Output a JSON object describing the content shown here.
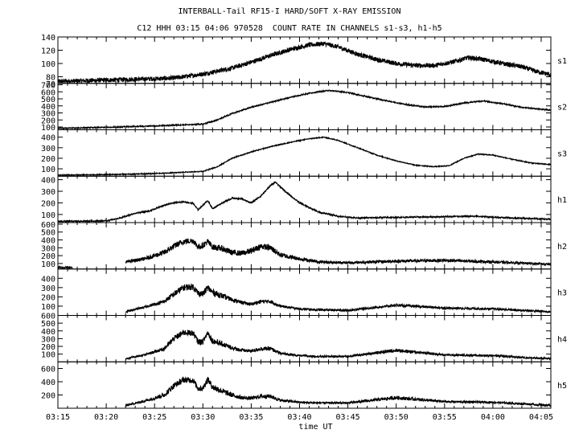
{
  "title": "INTERBALL-Tail RF15-I HARD/SOFT X-RAY EMISSION",
  "subtitle": "C12 HHH 03:15 04:06 970528  COUNT RATE IN CHANNELS s1-s3, h1-h5",
  "chart_data": {
    "type": "line",
    "title": "INTERBALL-Tail RF15-I HARD/SOFT X-RAY EMISSION",
    "subtitle": "C12 HHH 03:15 04:06 970528  COUNT RATE IN CHANNELS s1-s3, h1-h5",
    "xlabel": "time UT",
    "xlim": [
      "03:15",
      "04:06"
    ],
    "x_ticks": [
      "03:15",
      "03:20",
      "03:25",
      "03:30",
      "03:35",
      "03:40",
      "03:45",
      "03:50",
      "03:55",
      "04:00",
      "04:05"
    ],
    "grid": false,
    "panels": [
      {
        "name": "s1",
        "ylim": [
          70,
          140
        ],
        "y_ticks": [
          70,
          80,
          100,
          120,
          140
        ],
        "y_tick_labels": [
          "70",
          "80",
          "100",
          "120",
          "140"
        ],
        "x": [
          15.0,
          20.0,
          25.0,
          27.0,
          30.0,
          33.0,
          35.0,
          37.0,
          39.0,
          41.0,
          42.5,
          44.0,
          46.0,
          48.0,
          50.0,
          52.0,
          54.0,
          56.0,
          57.5,
          59.0,
          61.0,
          63.0,
          64.5,
          66.0
        ],
        "y": [
          73,
          75,
          77,
          78,
          84,
          93,
          102,
          112,
          121,
          128,
          130,
          125,
          114,
          106,
          100,
          97,
          97,
          103,
          109,
          106,
          100,
          95,
          88,
          83
        ],
        "noise": 3.5
      },
      {
        "name": "s2",
        "ylim": [
          60,
          720
        ],
        "y_ticks": [
          100,
          200,
          300,
          400,
          500,
          600,
          700
        ],
        "y_tick_labels": [
          "100",
          "200",
          "300",
          "400",
          "500",
          "600",
          "700"
        ],
        "x": [
          15.0,
          20.0,
          25.0,
          30.0,
          31.5,
          33.0,
          35.0,
          37.0,
          39.0,
          41.0,
          43.0,
          45.0,
          48.0,
          51.0,
          53.0,
          55.0,
          57.0,
          59.0,
          61.0,
          63.0,
          66.0
        ],
        "y": [
          80,
          95,
          115,
          140,
          200,
          290,
          380,
          450,
          520,
          580,
          620,
          590,
          500,
          420,
          385,
          390,
          440,
          470,
          430,
          380,
          340
        ],
        "noise": 8
      },
      {
        "name": "s3",
        "ylim": [
          30,
          470
        ],
        "y_ticks": [
          100,
          200,
          300,
          400
        ],
        "y_tick_labels": [
          "100",
          "200",
          "300",
          "400"
        ],
        "x": [
          15.0,
          20.0,
          25.0,
          30.0,
          31.5,
          33.0,
          35.0,
          37.0,
          39.0,
          41.0,
          42.5,
          44.0,
          46.0,
          48.0,
          50.0,
          52.0,
          54.0,
          55.5,
          57.0,
          58.5,
          60.0,
          62.0,
          64.0,
          66.0
        ],
        "y": [
          40,
          45,
          55,
          75,
          120,
          200,
          260,
          310,
          350,
          385,
          400,
          370,
          300,
          230,
          175,
          135,
          120,
          130,
          200,
          240,
          230,
          190,
          155,
          140
        ],
        "noise": 4
      },
      {
        "name": "h1",
        "ylim": [
          30,
          430
        ],
        "y_ticks": [
          100,
          200,
          300,
          400
        ],
        "y_tick_labels": [
          "100",
          "200",
          "300",
          "400"
        ],
        "x": [
          15.0,
          20.0,
          21.5,
          23.0,
          24.5,
          26.0,
          27.0,
          28.0,
          29.0,
          29.5,
          30.0,
          30.5,
          31.0,
          32.0,
          33.0,
          34.0,
          35.0,
          36.0,
          37.0,
          37.5,
          38.5,
          40.0,
          42.0,
          44.0,
          46.0,
          50.0,
          54.0,
          58.0,
          62.0,
          66.0
        ],
        "y": [
          40,
          45,
          70,
          110,
          130,
          180,
          200,
          210,
          195,
          140,
          180,
          220,
          150,
          200,
          240,
          235,
          200,
          260,
          350,
          380,
          300,
          200,
          120,
          85,
          70,
          75,
          80,
          85,
          70,
          60
        ],
        "noise": 6
      },
      {
        "name": "h2",
        "ylim": [
          30,
          620
        ],
        "y_ticks": [
          100,
          200,
          300,
          400,
          500,
          600
        ],
        "y_tick_labels": [
          "100",
          "200",
          "300",
          "400",
          "500",
          "600"
        ],
        "x": [
          15.0,
          18.5,
          18.6,
          21.5,
          22.0,
          24.0,
          26.0,
          27.0,
          28.0,
          29.0,
          29.5,
          30.0,
          30.5,
          31.0,
          32.0,
          33.0,
          34.0,
          35.0,
          36.0,
          37.0,
          38.0,
          40.0,
          42.0,
          45.0,
          50.0,
          55.0,
          60.0,
          64.0,
          66.0
        ],
        "y": [
          50,
          50,
          50,
          55,
          120,
          160,
          240,
          320,
          380,
          390,
          310,
          330,
          380,
          310,
          290,
          240,
          230,
          260,
          320,
          300,
          210,
          160,
          120,
          110,
          130,
          140,
          120,
          100,
          90
        ],
        "noise": 38,
        "gaps": [
          [
            16.5,
            22.0
          ]
        ]
      },
      {
        "name": "h3",
        "ylim": [
          0,
          500
        ],
        "y_ticks": [
          100,
          200,
          300,
          400
        ],
        "y_tick_labels": [
          "100",
          "200",
          "300",
          "400"
        ],
        "x": [
          22.0,
          24.0,
          26.0,
          27.0,
          28.0,
          29.0,
          29.5,
          30.0,
          30.5,
          31.0,
          32.0,
          33.0,
          34.0,
          35.0,
          36.0,
          37.0,
          38.0,
          40.0,
          42.0,
          45.0,
          50.0,
          55.0,
          60.0,
          64.0,
          66.0
        ],
        "y": [
          40,
          90,
          150,
          230,
          300,
          310,
          240,
          230,
          300,
          250,
          210,
          170,
          140,
          120,
          150,
          150,
          100,
          70,
          60,
          55,
          110,
          80,
          70,
          50,
          40
        ],
        "noise": 35,
        "gaps": [
          [
            15.0,
            22.0
          ]
        ]
      },
      {
        "name": "h4",
        "ylim": [
          0,
          600
        ],
        "y_ticks": [
          100,
          200,
          300,
          400,
          500,
          600
        ],
        "y_tick_labels": [
          "100",
          "200",
          "300",
          "400",
          "500",
          "600"
        ],
        "x": [
          22.0,
          24.0,
          26.0,
          27.0,
          28.0,
          29.0,
          29.5,
          30.0,
          30.5,
          31.0,
          32.0,
          33.0,
          34.0,
          35.0,
          36.0,
          37.0,
          38.0,
          40.0,
          42.0,
          45.0,
          50.0,
          55.0,
          60.0,
          64.0,
          66.0
        ],
        "y": [
          40,
          90,
          170,
          300,
          380,
          370,
          260,
          260,
          380,
          270,
          230,
          180,
          150,
          140,
          170,
          170,
          110,
          80,
          70,
          70,
          150,
          90,
          80,
          50,
          40
        ],
        "noise": 38,
        "gaps": [
          [
            15.0,
            22.0
          ]
        ]
      },
      {
        "name": "h5",
        "ylim": [
          0,
          700
        ],
        "y_ticks": [
          200,
          400,
          600
        ],
        "y_tick_labels": [
          "200",
          "400",
          "600"
        ],
        "x": [
          22.0,
          24.0,
          26.0,
          27.0,
          28.0,
          29.0,
          29.5,
          30.0,
          30.5,
          31.0,
          32.0,
          33.0,
          34.0,
          35.0,
          36.0,
          37.0,
          38.0,
          40.0,
          42.0,
          45.0,
          50.0,
          55.0,
          60.0,
          64.0,
          66.0
        ],
        "y": [
          40,
          110,
          200,
          340,
          430,
          420,
          300,
          300,
          440,
          320,
          260,
          200,
          160,
          150,
          180,
          180,
          120,
          90,
          80,
          80,
          160,
          100,
          90,
          60,
          40
        ],
        "noise": 45,
        "gaps": [
          [
            15.0,
            22.0
          ]
        ]
      }
    ]
  }
}
